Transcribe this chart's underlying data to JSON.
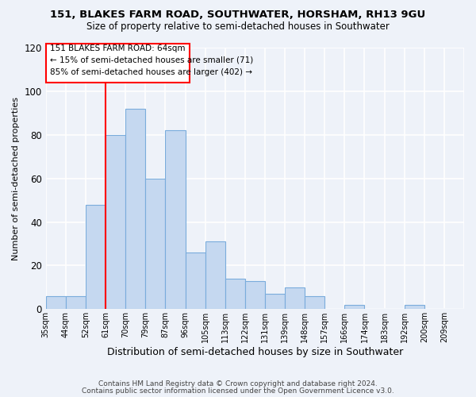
{
  "title1": "151, BLAKES FARM ROAD, SOUTHWATER, HORSHAM, RH13 9GU",
  "title2": "Size of property relative to semi-detached houses in Southwater",
  "xlabel": "Distribution of semi-detached houses by size in Southwater",
  "ylabel": "Number of semi-detached properties",
  "footer1": "Contains HM Land Registry data © Crown copyright and database right 2024.",
  "footer2": "Contains public sector information licensed under the Open Government Licence v3.0.",
  "bin_labels": [
    "35sqm",
    "44sqm",
    "52sqm",
    "61sqm",
    "70sqm",
    "79sqm",
    "87sqm",
    "96sqm",
    "105sqm",
    "113sqm",
    "122sqm",
    "131sqm",
    "139sqm",
    "148sqm",
    "157sqm",
    "166sqm",
    "174sqm",
    "183sqm",
    "192sqm",
    "200sqm",
    "209sqm"
  ],
  "bin_values": [
    6,
    6,
    48,
    80,
    92,
    60,
    82,
    26,
    31,
    14,
    13,
    7,
    10,
    6,
    0,
    2,
    0,
    0,
    2,
    0,
    0
  ],
  "bar_color": "#c5d8f0",
  "bar_edgecolor": "#7aacdc",
  "property_line_idx": 3,
  "property_line_color": "red",
  "annotation_box_text": "151 BLAKES FARM ROAD: 64sqm\n← 15% of semi-detached houses are smaller (71)\n85% of semi-detached houses are larger (402) →",
  "ylim": [
    0,
    120
  ],
  "yticks": [
    0,
    20,
    40,
    60,
    80,
    100,
    120
  ],
  "bg_color": "#eef2f9",
  "grid_color": "#ffffff"
}
